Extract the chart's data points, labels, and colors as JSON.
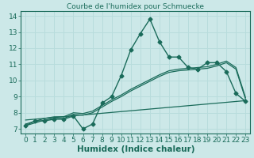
{
  "title": "Courbe de l'humidex pour Schmuecke",
  "xlabel": "Humidex (Indice chaleur)",
  "bg_color": "#cce8e8",
  "grid_color": "#aad4d4",
  "line_color": "#1a6b5a",
  "xlim": [
    -0.5,
    23.5
  ],
  "ylim": [
    6.7,
    14.3
  ],
  "xticks": [
    0,
    1,
    2,
    3,
    4,
    5,
    6,
    7,
    8,
    9,
    10,
    11,
    12,
    13,
    14,
    15,
    16,
    17,
    18,
    19,
    20,
    21,
    22,
    23
  ],
  "yticks": [
    7,
    8,
    9,
    10,
    11,
    12,
    13,
    14
  ],
  "main_x": [
    0,
    1,
    2,
    3,
    4,
    5,
    6,
    7,
    8,
    9,
    10,
    11,
    12,
    13,
    14,
    15,
    16,
    17,
    18,
    19,
    20,
    21,
    22,
    23
  ],
  "main_y": [
    7.2,
    7.5,
    7.5,
    7.6,
    7.6,
    7.8,
    7.0,
    7.3,
    8.6,
    9.0,
    10.3,
    11.9,
    12.9,
    13.8,
    12.4,
    11.45,
    11.45,
    10.8,
    10.7,
    11.1,
    11.1,
    10.55,
    9.2,
    8.7
  ],
  "trend1_x": [
    0,
    2,
    3,
    4,
    5,
    6,
    7,
    8,
    9,
    10,
    11,
    12,
    13,
    14,
    15,
    16,
    17,
    18,
    19,
    20,
    21,
    22,
    23
  ],
  "trend1_y": [
    7.2,
    7.55,
    7.65,
    7.65,
    7.9,
    7.85,
    8.0,
    8.35,
    8.7,
    9.0,
    9.35,
    9.65,
    9.95,
    10.25,
    10.5,
    10.6,
    10.65,
    10.7,
    10.75,
    10.9,
    11.1,
    10.7,
    8.85
  ],
  "trend2_x": [
    0,
    2,
    3,
    4,
    5,
    6,
    7,
    8,
    9,
    10,
    11,
    12,
    13,
    14,
    15,
    16,
    17,
    18,
    19,
    20,
    21,
    22,
    23
  ],
  "trend2_y": [
    7.3,
    7.65,
    7.75,
    7.75,
    8.0,
    7.95,
    8.1,
    8.45,
    8.8,
    9.1,
    9.45,
    9.75,
    10.05,
    10.35,
    10.6,
    10.7,
    10.75,
    10.8,
    10.85,
    11.0,
    11.2,
    10.8,
    8.95
  ],
  "trend3_x": [
    0,
    23
  ],
  "trend3_y": [
    7.55,
    8.75
  ],
  "font_color": "#1a6b5a",
  "tick_fontsize": 6.5,
  "label_fontsize": 7.5
}
